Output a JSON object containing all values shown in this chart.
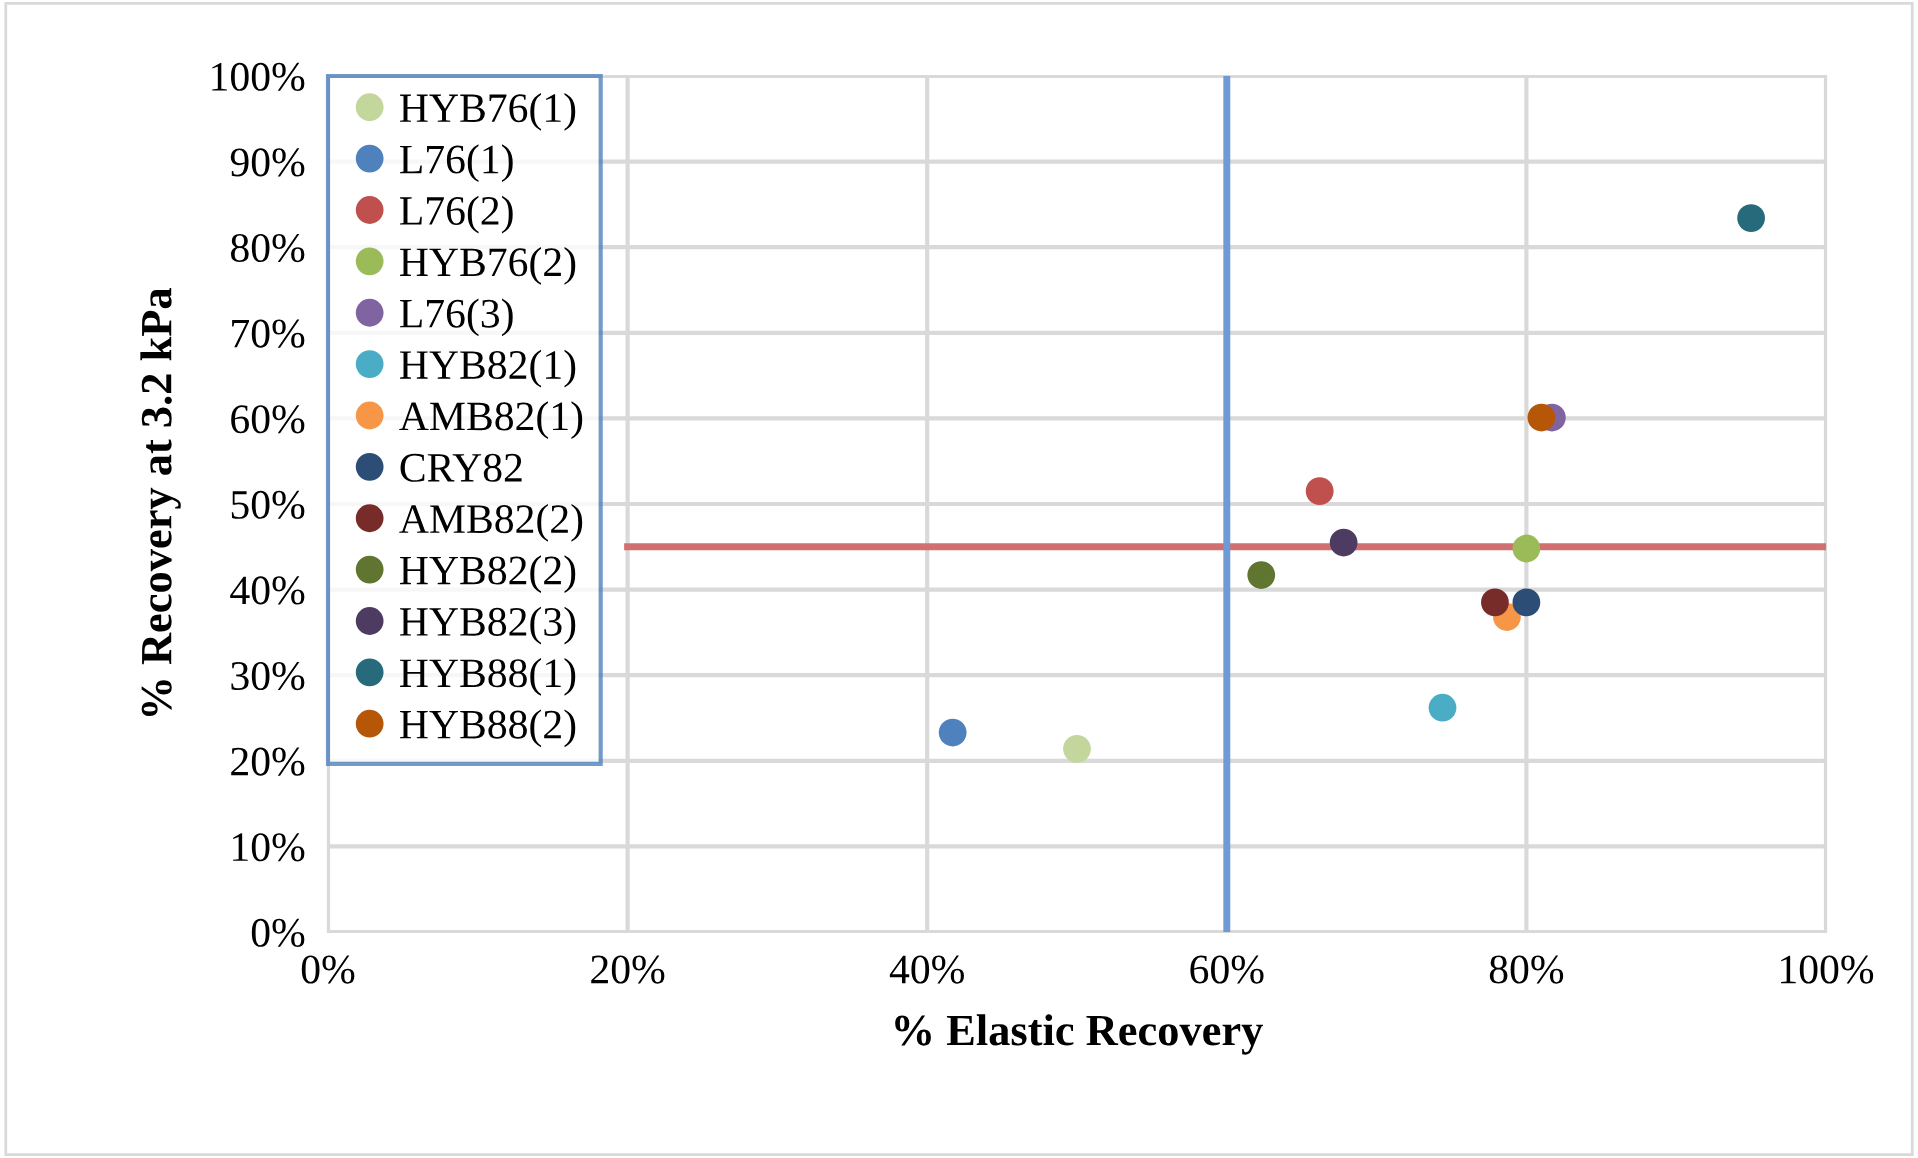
{
  "chart_data": {
    "type": "scatter",
    "xlabel": "% Elastic Recovery",
    "ylabel": "% Recovery at 3.2 kPa",
    "xlim": [
      0,
      100
    ],
    "ylim": [
      0,
      100
    ],
    "xticks": [
      {
        "value": 0,
        "label": "0%"
      },
      {
        "value": 20,
        "label": "20%"
      },
      {
        "value": 40,
        "label": "40%"
      },
      {
        "value": 60,
        "label": "60%"
      },
      {
        "value": 80,
        "label": "80%"
      },
      {
        "value": 100,
        "label": "100%"
      }
    ],
    "yticks": [
      {
        "value": 0,
        "label": "0%"
      },
      {
        "value": 10,
        "label": "10%"
      },
      {
        "value": 20,
        "label": "20%"
      },
      {
        "value": 30,
        "label": "30%"
      },
      {
        "value": 40,
        "label": "40%"
      },
      {
        "value": 50,
        "label": "50%"
      },
      {
        "value": 60,
        "label": "60%"
      },
      {
        "value": 70,
        "label": "70%"
      },
      {
        "value": 80,
        "label": "80%"
      },
      {
        "value": 90,
        "label": "90%"
      },
      {
        "value": 100,
        "label": "100%"
      }
    ],
    "grid": true,
    "legend": "top left",
    "marker": "circle",
    "series": [
      {
        "name": "HYB76(1)",
        "color": "#c3d69b",
        "x": [
          50.0
        ],
        "values": [
          21.4
        ]
      },
      {
        "name": "L76(1)",
        "color": "#4f81bd",
        "x": [
          41.7
        ],
        "values": [
          23.3
        ]
      },
      {
        "name": "L76(2)",
        "color": "#c0504d",
        "x": [
          66.2
        ],
        "values": [
          51.5
        ]
      },
      {
        "name": "HYB76(2)",
        "color": "#9bbb59",
        "x": [
          80.0
        ],
        "values": [
          44.8
        ]
      },
      {
        "name": "L76(3)",
        "color": "#8064a2",
        "x": [
          81.7
        ],
        "values": [
          60.1
        ]
      },
      {
        "name": "HYB82(1)",
        "color": "#4bacc6",
        "x": [
          74.4
        ],
        "values": [
          26.2
        ]
      },
      {
        "name": "AMB82(1)",
        "color": "#f79646",
        "x": [
          78.7
        ],
        "values": [
          36.8
        ]
      },
      {
        "name": "CRY82",
        "color": "#2c4d75",
        "x": [
          80.0
        ],
        "values": [
          38.5
        ]
      },
      {
        "name": "AMB82(2)",
        "color": "#772c2a",
        "x": [
          77.9
        ],
        "values": [
          38.5
        ]
      },
      {
        "name": "HYB82(2)",
        "color": "#5f7530",
        "x": [
          62.3
        ],
        "values": [
          41.7
        ]
      },
      {
        "name": "HYB82(3)",
        "color": "#4d3b62",
        "x": [
          67.8
        ],
        "values": [
          45.5
        ]
      },
      {
        "name": "HYB88(1)",
        "color": "#276a7c",
        "x": [
          95.0
        ],
        "values": [
          83.4
        ]
      },
      {
        "name": "HYB88(2)",
        "color": "#b65708",
        "x": [
          81.0
        ],
        "values": [
          60.1
        ]
      },
      {
        "type": "line",
        "color": "#d07070",
        "marker": "none",
        "x": [
          20,
          100
        ],
        "values": [
          45,
          45
        ]
      }
    ],
    "ref_lines": [
      {
        "axis": "x",
        "value": 60,
        "color": "#6f9ad6"
      }
    ]
  }
}
